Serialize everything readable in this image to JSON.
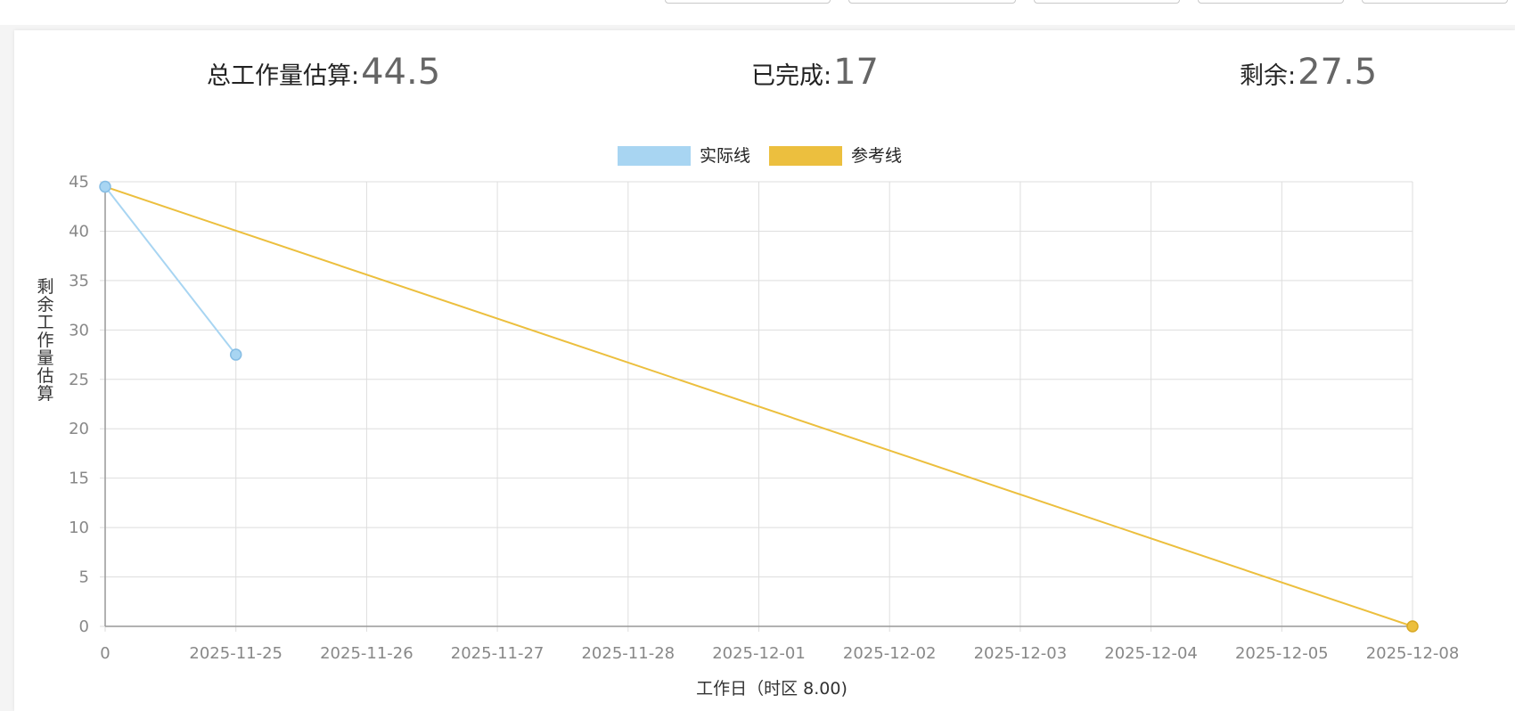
{
  "stats": {
    "total_label": "总工作量估算:",
    "total_value": "44.5",
    "done_label": "已完成:",
    "done_value": "17",
    "remaining_label": "剩余:",
    "remaining_value": "27.5"
  },
  "colors": {
    "actual": "#a8d5f2",
    "reference": "#ecbf3e",
    "grid": "#dedede",
    "axis": "#999999",
    "tick": "#888888"
  },
  "chart_data": {
    "type": "line",
    "title": "",
    "xlabel": "工作日（时区 8.00)",
    "ylabel": "剩余工作量估算",
    "categories": [
      "0",
      "2025-11-25",
      "2025-11-26",
      "2025-11-27",
      "2025-11-28",
      "2025-12-01",
      "2025-12-02",
      "2025-12-03",
      "2025-12-04",
      "2025-12-05",
      "2025-12-08"
    ],
    "yticks": [
      0,
      5,
      10,
      15,
      20,
      25,
      30,
      35,
      40,
      45
    ],
    "ylim": [
      0,
      45
    ],
    "grid": true,
    "legend_position": "top-center",
    "series": [
      {
        "name": "实际线",
        "points": [
          {
            "x": "0",
            "y": 44.5
          },
          {
            "x": "2025-11-25",
            "y": 27.5
          }
        ]
      },
      {
        "name": "参考线",
        "points": [
          {
            "x": "0",
            "y": 44.5
          },
          {
            "x": "2025-12-08",
            "y": 0
          }
        ]
      }
    ]
  }
}
